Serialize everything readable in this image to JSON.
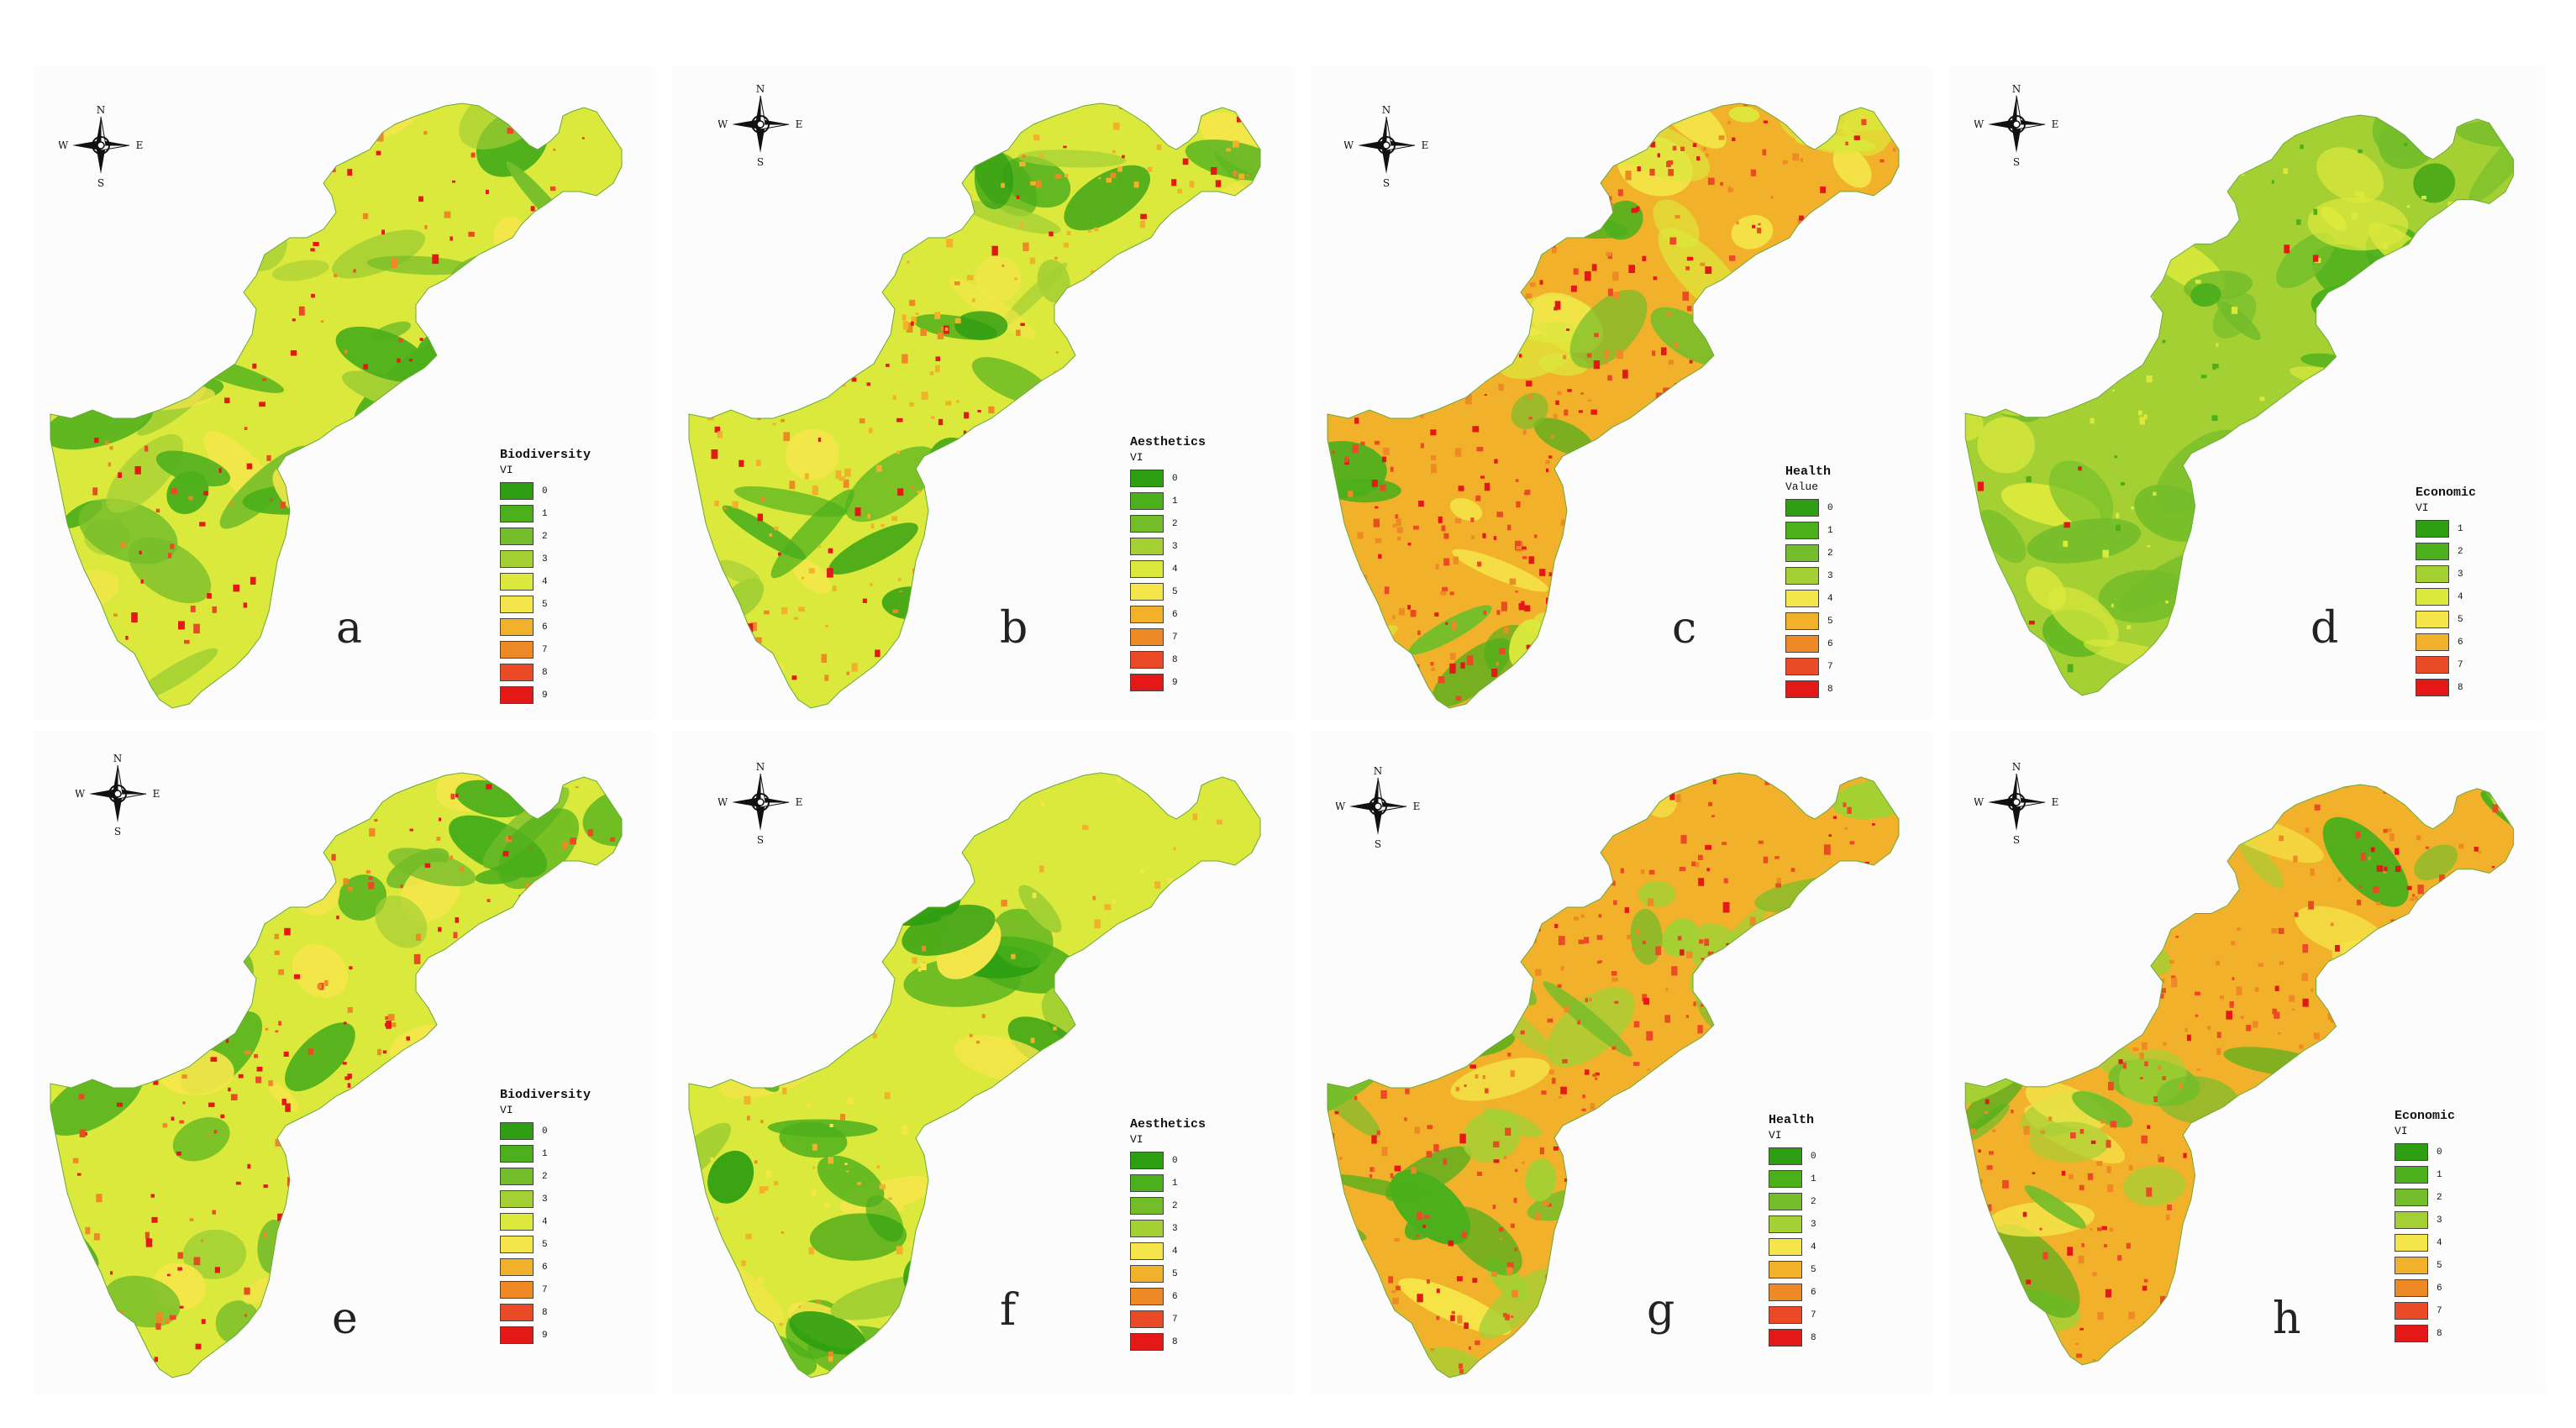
{
  "colors": {
    "g0": "#2e9e12",
    "g1": "#4caf1c",
    "g2": "#74bd2a",
    "g3": "#a4d034",
    "y4": "#dbe83c",
    "y5": "#f4e64a",
    "o6": "#f2b12a",
    "o7": "#ee8a25",
    "r8": "#ea4a25",
    "r9": "#e51818"
  },
  "compass": {
    "n": "N",
    "s": "S",
    "e": "E",
    "w": "W"
  },
  "panels": [
    {
      "label": "a",
      "legend_title": "Biodiversity",
      "legend_sub": "VI",
      "classes": [
        "0",
        "1",
        "2",
        "3",
        "4",
        "5",
        "6",
        "7",
        "8",
        "9"
      ],
      "scheme": "mostly-yellow-red-specks"
    },
    {
      "label": "b",
      "legend_title": "Aesthetics",
      "legend_sub": "VI",
      "classes": [
        "0",
        "1",
        "2",
        "3",
        "4",
        "5",
        "6",
        "7",
        "8",
        "9"
      ],
      "scheme": "green-valleys-orange"
    },
    {
      "label": "c",
      "legend_title": "Health",
      "legend_sub": "Value",
      "classes": [
        "0",
        "1",
        "2",
        "3",
        "4",
        "5",
        "6",
        "7",
        "8"
      ],
      "scheme": "orange-red-dense"
    },
    {
      "label": "d",
      "legend_title": "Economic",
      "legend_sub": "VI",
      "classes": [
        "1",
        "2",
        "3",
        "4",
        "5",
        "6",
        "7",
        "8"
      ],
      "scheme": "green-light"
    },
    {
      "label": "e",
      "legend_title": "Biodiversity",
      "legend_sub": "VI",
      "classes": [
        "0",
        "1",
        "2",
        "3",
        "4",
        "5",
        "6",
        "7",
        "8",
        "9"
      ],
      "scheme": "yellow-green-red"
    },
    {
      "label": "f",
      "legend_title": "Aesthetics",
      "legend_sub": "VI",
      "classes": [
        "0",
        "1",
        "2",
        "3",
        "4",
        "5",
        "6",
        "7",
        "8"
      ],
      "scheme": "green-yellow"
    },
    {
      "label": "g",
      "legend_title": "Health",
      "legend_sub": "VI",
      "classes": [
        "0",
        "1",
        "2",
        "3",
        "4",
        "5",
        "6",
        "7",
        "8"
      ],
      "scheme": "orange-red-green"
    },
    {
      "label": "h",
      "legend_title": "Economic",
      "legend_sub": "VI",
      "classes": [
        "0",
        "1",
        "2",
        "3",
        "4",
        "5",
        "6",
        "7",
        "8"
      ],
      "scheme": "orange-dominant"
    }
  ]
}
